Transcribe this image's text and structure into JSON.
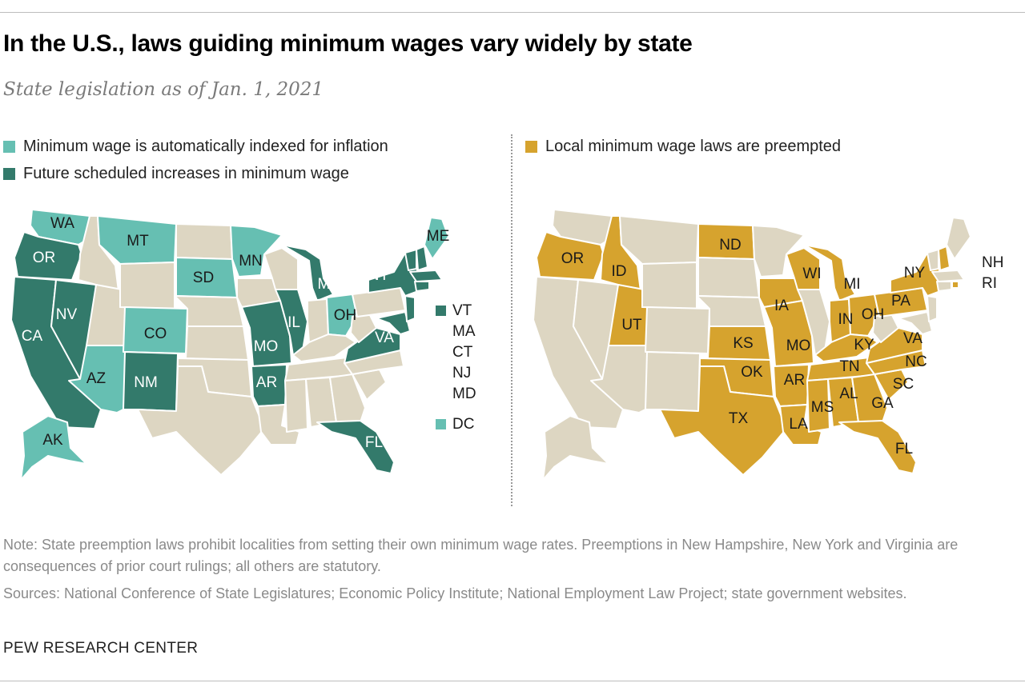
{
  "title": "In the U.S., laws guiding minimum wages vary widely by state",
  "subtitle": "State legislation as of Jan. 1, 2021",
  "colors": {
    "indexed": "#66bfb2",
    "scheduled": "#337a6b",
    "preempted": "#d6a32e",
    "other": "#ddd6c2"
  },
  "legend": {
    "indexed": "Minimum wage is automatically indexed for inflation",
    "scheduled": "Future scheduled increases in minimum wage",
    "preempted": "Local minimum wage laws are preempted"
  },
  "map_left": {
    "labels": {
      "WA": "WA",
      "OR": "OR",
      "CA": "CA",
      "NV": "NV",
      "AZ": "AZ",
      "MT": "MT",
      "CO": "CO",
      "NM": "NM",
      "SD": "SD",
      "MN": "MN",
      "MO": "MO",
      "AR": "AR",
      "IL": "IL",
      "MI": "MI",
      "OH": "OH",
      "FL": "FL",
      "NY": "NY",
      "VA": "VA",
      "ME": "ME",
      "AK": "AK"
    },
    "side_list": [
      "VT",
      "MA",
      "CT",
      "NJ",
      "MD"
    ],
    "side_dc": "DC"
  },
  "map_right": {
    "labels": {
      "OR": "OR",
      "ID": "ID",
      "UT": "UT",
      "ND": "ND",
      "KS": "KS",
      "OK": "OK",
      "TX": "TX",
      "IA": "IA",
      "MO": "MO",
      "AR": "AR",
      "LA": "LA",
      "WI": "WI",
      "MI": "MI",
      "IN": "IN",
      "OH": "OH",
      "KY": "KY",
      "TN": "TN",
      "MS": "MS",
      "AL": "AL",
      "GA": "GA",
      "SC": "SC",
      "NC": "NC",
      "VA": "VA",
      "PA": "PA",
      "NY": "NY",
      "FL": "FL"
    },
    "side_list": [
      "NH",
      "RI"
    ]
  },
  "note": "Note: State preemption laws prohibit localities from setting their own minimum wage rates. Preemptions in New Hampshire, New York and Virginia are consequences of prior court rulings; all others are statutory.",
  "sources": "Sources: National Conference of State Legislatures; Economic Policy Institute; National Employment Law Project; state government websites.",
  "brand": "PEW RESEARCH CENTER"
}
